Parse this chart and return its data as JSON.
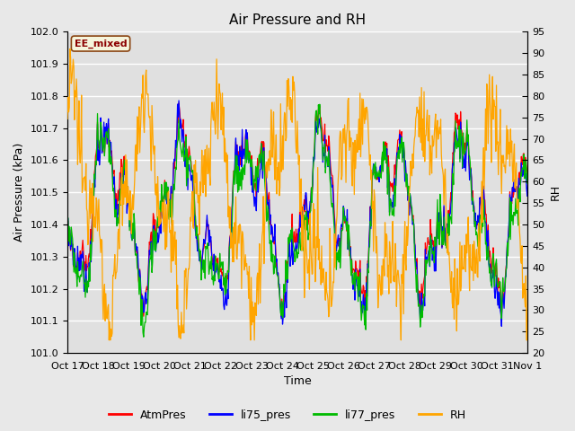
{
  "title": "Air Pressure and RH",
  "xlabel": "Time",
  "ylabel_left": "Air Pressure (kPa)",
  "ylabel_right": "RH",
  "ylim_left": [
    101.0,
    102.0
  ],
  "ylim_right": [
    20,
    95
  ],
  "yticks_left": [
    101.0,
    101.1,
    101.2,
    101.3,
    101.4,
    101.5,
    101.6,
    101.7,
    101.8,
    101.9,
    102.0
  ],
  "yticks_right": [
    20,
    25,
    30,
    35,
    40,
    45,
    50,
    55,
    60,
    65,
    70,
    75,
    80,
    85,
    90,
    95
  ],
  "xtick_labels": [
    "Oct 17",
    "Oct 18",
    "Oct 19",
    "Oct 20",
    "Oct 21",
    "Oct 22",
    "Oct 23",
    "Oct 24",
    "Oct 25",
    "Oct 26",
    "Oct 27",
    "Oct 28",
    "Oct 29",
    "Oct 30",
    "Oct 31",
    "Nov 1"
  ],
  "annotation_text": "EE_mixed",
  "annotation_color": "#8B0000",
  "annotation_bg": "#F5F5DC",
  "annotation_border": "#8B4513",
  "color_atmpres": "#FF0000",
  "color_li75": "#0000FF",
  "color_li77": "#00BB00",
  "color_rh": "#FFA500",
  "legend_labels": [
    "AtmPres",
    "li75_pres",
    "li77_pres",
    "RH"
  ],
  "bg_color": "#E8E8E8",
  "grid_color": "#FFFFFF",
  "title_fontsize": 11,
  "axis_fontsize": 9,
  "tick_fontsize": 8
}
